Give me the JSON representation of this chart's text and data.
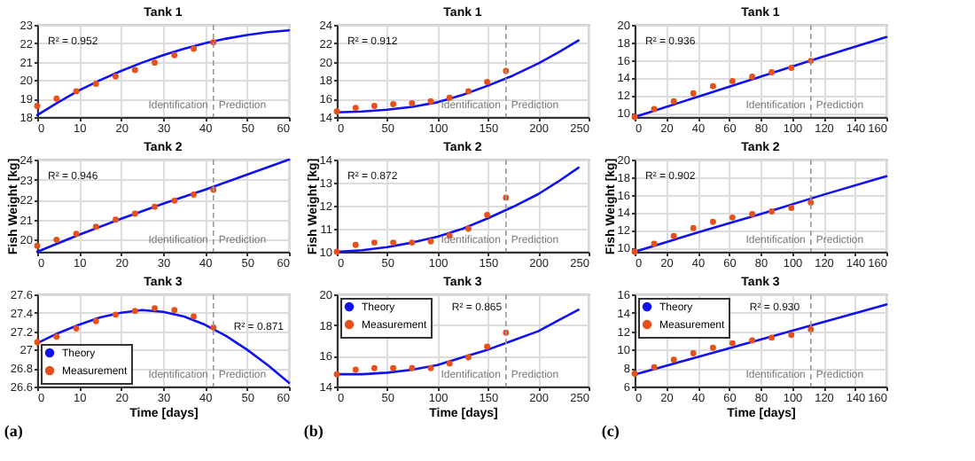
{
  "chart_data": [
    {
      "type": "line",
      "title": "Tank 1",
      "xlim": [
        0,
        60
      ],
      "xticks": [
        0,
        10,
        20,
        30,
        40,
        50,
        60
      ],
      "ylim": [
        18,
        23
      ],
      "yticks": [
        18,
        19,
        20,
        21,
        22,
        23
      ],
      "grid": true,
      "legend": false,
      "series": [
        {
          "color": "#1010f0",
          "line_style": "solid",
          "x": [
            0,
            5,
            10,
            15,
            20,
            25,
            30,
            35,
            40,
            45,
            50,
            55,
            60
          ],
          "values": [
            18.1,
            18.8,
            19.45,
            20.0,
            20.5,
            20.95,
            21.35,
            21.7,
            22.0,
            22.25,
            22.45,
            22.6,
            22.7
          ]
        },
        {
          "type": "scatter",
          "color": "#e8501a",
          "marker": "circle",
          "x": [
            0,
            4.6,
            9.3,
            14,
            18.7,
            23.3,
            28,
            32.7,
            37.3,
            42
          ],
          "values": [
            18.6,
            19.0,
            19.4,
            19.8,
            20.2,
            20.55,
            20.95,
            21.35,
            21.7,
            22.05
          ]
        }
      ],
      "ref_lines": [
        {
          "axis": "x",
          "value": 42,
          "color": "#999999",
          "line_style": "dashed"
        }
      ],
      "annotations": [
        "R² = 0.952",
        "Identification",
        "Prediction"
      ]
    },
    {
      "type": "line",
      "title": "Tank 2",
      "ylabel": "Fish Weight [kg]",
      "xlim": [
        0,
        60
      ],
      "xticks": [
        0,
        10,
        20,
        30,
        40,
        50,
        60
      ],
      "ylim": [
        19.4,
        24
      ],
      "yticks": [
        20,
        21,
        22,
        23,
        24
      ],
      "grid": true,
      "legend": false,
      "series": [
        {
          "color": "#1010f0",
          "line_style": "solid",
          "x": [
            0,
            10,
            20,
            30,
            40,
            50,
            60
          ],
          "values": [
            19.4,
            20.25,
            21.05,
            21.8,
            22.5,
            23.25,
            24.0
          ]
        },
        {
          "type": "scatter",
          "color": "#e8501a",
          "marker": "circle",
          "x": [
            0,
            4.6,
            9.3,
            14,
            18.7,
            23.3,
            28,
            32.7,
            37.3,
            42
          ],
          "values": [
            19.7,
            20.0,
            20.3,
            20.65,
            21.0,
            21.3,
            21.65,
            21.95,
            22.25,
            22.5
          ]
        }
      ],
      "ref_lines": [
        {
          "axis": "x",
          "value": 42,
          "color": "#999999",
          "line_style": "dashed"
        }
      ],
      "annotations": [
        "R² = 0.946",
        "Identification",
        "Prediction"
      ]
    },
    {
      "type": "line",
      "title": "Tank 3",
      "xlabel": "Time [days]",
      "xlim": [
        0,
        60
      ],
      "xticks": [
        0,
        10,
        20,
        30,
        40,
        50,
        60
      ],
      "ylim": [
        26.6,
        27.6
      ],
      "yticks": [
        26.6,
        26.8,
        27,
        27.2,
        27.4,
        27.6
      ],
      "grid": true,
      "legend": "bottom left",
      "series": [
        {
          "name": "Theory",
          "color": "#1010f0",
          "line_style": "solid",
          "x": [
            0,
            5,
            10,
            15,
            20,
            25,
            30,
            35,
            40,
            45,
            50,
            55,
            60
          ],
          "values": [
            27.07,
            27.18,
            27.27,
            27.35,
            27.4,
            27.43,
            27.41,
            27.36,
            27.27,
            27.15,
            27.0,
            26.83,
            26.64
          ]
        },
        {
          "name": "Measurement",
          "type": "scatter",
          "color": "#e8501a",
          "marker": "circle",
          "x": [
            0,
            4.6,
            9.3,
            14,
            18.7,
            23.3,
            28,
            32.7,
            37.3,
            42
          ],
          "values": [
            27.08,
            27.14,
            27.23,
            27.31,
            27.38,
            27.42,
            27.45,
            27.43,
            27.36,
            27.24
          ]
        }
      ],
      "ref_lines": [
        {
          "axis": "x",
          "value": 42,
          "color": "#999999",
          "line_style": "dashed"
        }
      ],
      "annotations": [
        "R² = 0.871",
        "Identification",
        "Prediction",
        "(a)"
      ]
    },
    {
      "type": "line",
      "title": "Tank 1",
      "xlim": [
        0,
        250
      ],
      "xticks": [
        0,
        50,
        100,
        150,
        200,
        250
      ],
      "ylim": [
        14,
        24
      ],
      "yticks": [
        14,
        16,
        18,
        20,
        22,
        24
      ],
      "grid": true,
      "legend": false,
      "series": [
        {
          "color": "#1010f0",
          "line_style": "solid",
          "x": [
            0,
            25,
            50,
            75,
            100,
            125,
            150,
            175,
            200,
            220,
            240
          ],
          "values": [
            14.5,
            14.6,
            14.8,
            15.1,
            15.6,
            16.4,
            17.4,
            18.5,
            19.8,
            21.0,
            22.3
          ]
        },
        {
          "type": "scatter",
          "color": "#e8501a",
          "marker": "circle",
          "x": [
            0,
            18.7,
            37.3,
            56,
            74.7,
            93.3,
            112,
            130.7,
            149.3,
            168
          ],
          "values": [
            14.6,
            15.0,
            15.2,
            15.4,
            15.5,
            15.7,
            16.1,
            16.8,
            17.8,
            19.0
          ]
        }
      ],
      "ref_lines": [
        {
          "axis": "x",
          "value": 168,
          "color": "#999999",
          "line_style": "dashed"
        }
      ],
      "annotations": [
        "R² = 0.912",
        "Identification",
        "Prediction"
      ]
    },
    {
      "type": "line",
      "title": "Tank 2",
      "ylabel": "Fish Weight [kg]",
      "xlim": [
        0,
        250
      ],
      "xticks": [
        0,
        50,
        100,
        150,
        200,
        250
      ],
      "ylim": [
        10,
        14
      ],
      "yticks": [
        10,
        11,
        12,
        13,
        14
      ],
      "grid": true,
      "legend": false,
      "series": [
        {
          "color": "#1010f0",
          "line_style": "solid",
          "x": [
            0,
            25,
            50,
            75,
            100,
            125,
            150,
            175,
            200,
            220,
            240
          ],
          "values": [
            10.0,
            10.07,
            10.2,
            10.4,
            10.65,
            11.0,
            11.45,
            11.95,
            12.5,
            13.05,
            13.65
          ]
        },
        {
          "type": "scatter",
          "color": "#e8501a",
          "marker": "circle",
          "x": [
            0,
            18.7,
            37.3,
            56,
            74.7,
            93.3,
            112,
            130.7,
            149.3,
            168
          ],
          "values": [
            10.0,
            10.3,
            10.4,
            10.4,
            10.4,
            10.45,
            10.7,
            11.0,
            11.6,
            12.35
          ]
        }
      ],
      "ref_lines": [
        {
          "axis": "x",
          "value": 168,
          "color": "#999999",
          "line_style": "dashed"
        }
      ],
      "annotations": [
        "R² = 0.872",
        "Identification",
        "Prediction"
      ]
    },
    {
      "type": "line",
      "title": "Tank 3",
      "xlabel": "Time [days]",
      "xlim": [
        0,
        250
      ],
      "xticks": [
        0,
        50,
        100,
        150,
        200,
        250
      ],
      "ylim": [
        14,
        20
      ],
      "yticks": [
        14,
        16,
        18,
        20
      ],
      "grid": true,
      "legend": "top left",
      "series": [
        {
          "name": "Theory",
          "color": "#1010f0",
          "line_style": "solid",
          "x": [
            0,
            25,
            50,
            75,
            100,
            125,
            150,
            175,
            200,
            220,
            240
          ],
          "values": [
            14.8,
            14.8,
            14.9,
            15.1,
            15.4,
            15.9,
            16.4,
            17.0,
            17.6,
            18.3,
            19.0
          ]
        },
        {
          "name": "Measurement",
          "type": "scatter",
          "color": "#e8501a",
          "marker": "circle",
          "x": [
            0,
            18.7,
            37.3,
            56,
            74.7,
            93.3,
            112,
            130.7,
            149.3,
            168
          ],
          "values": [
            14.8,
            15.1,
            15.2,
            15.2,
            15.2,
            15.2,
            15.5,
            15.9,
            16.6,
            17.5
          ]
        }
      ],
      "ref_lines": [
        {
          "axis": "x",
          "value": 168,
          "color": "#999999",
          "line_style": "dashed"
        }
      ],
      "annotations": [
        "R² = 0.865",
        "Identification",
        "Prediction",
        "(b)"
      ]
    },
    {
      "type": "line",
      "title": "Tank 1",
      "xlim": [
        0,
        160
      ],
      "xticks": [
        0,
        20,
        40,
        60,
        80,
        100,
        120,
        140,
        160
      ],
      "ylim": [
        9.5,
        20
      ],
      "yticks": [
        10,
        12,
        14,
        16,
        18,
        20
      ],
      "grid": true,
      "legend": false,
      "series": [
        {
          "color": "#1010f0",
          "line_style": "solid",
          "x": [
            0,
            40,
            80,
            120,
            160
          ],
          "values": [
            9.5,
            11.8,
            14.1,
            16.4,
            18.6
          ]
        },
        {
          "type": "scatter",
          "color": "#e8501a",
          "marker": "circle",
          "x": [
            0,
            12.4,
            24.9,
            37.3,
            49.8,
            62.2,
            74.7,
            87.1,
            99.6,
            112
          ],
          "values": [
            9.5,
            10.4,
            11.3,
            12.2,
            13.0,
            13.6,
            14.1,
            14.6,
            15.1,
            15.9
          ]
        }
      ],
      "ref_lines": [
        {
          "axis": "x",
          "value": 112,
          "color": "#999999",
          "line_style": "dashed"
        }
      ],
      "annotations": [
        "R² = 0.936",
        "Identification",
        "Prediction"
      ]
    },
    {
      "type": "line",
      "title": "Tank 2",
      "ylabel": "Fish Weight [kg]",
      "xlim": [
        0,
        160
      ],
      "xticks": [
        0,
        20,
        40,
        60,
        80,
        100,
        120,
        140,
        160
      ],
      "ylim": [
        9.5,
        20
      ],
      "yticks": [
        10,
        12,
        14,
        16,
        18,
        20
      ],
      "grid": true,
      "legend": false,
      "series": [
        {
          "color": "#1010f0",
          "line_style": "solid",
          "x": [
            0,
            40,
            80,
            120,
            160
          ],
          "values": [
            9.5,
            11.7,
            13.8,
            16.0,
            18.1
          ]
        },
        {
          "type": "scatter",
          "color": "#e8501a",
          "marker": "circle",
          "x": [
            0,
            12.4,
            24.9,
            37.3,
            49.8,
            62.2,
            74.7,
            87.1,
            99.6,
            112
          ],
          "values": [
            9.5,
            10.4,
            11.3,
            12.2,
            12.9,
            13.4,
            13.8,
            14.1,
            14.5,
            15.1
          ]
        }
      ],
      "ref_lines": [
        {
          "axis": "x",
          "value": 112,
          "color": "#999999",
          "line_style": "dashed"
        }
      ],
      "annotations": [
        "R² = 0.902",
        "Identification",
        "Prediction"
      ]
    },
    {
      "type": "line",
      "title": "Tank 3",
      "xlabel": "Time [days]",
      "xlim": [
        0,
        160
      ],
      "xticks": [
        0,
        20,
        40,
        60,
        80,
        100,
        120,
        140,
        160
      ],
      "ylim": [
        6,
        16
      ],
      "yticks": [
        6,
        8,
        10,
        12,
        14,
        16
      ],
      "grid": true,
      "legend": "top left",
      "series": [
        {
          "name": "Theory",
          "color": "#1010f0",
          "line_style": "solid",
          "x": [
            0,
            40,
            80,
            120,
            160
          ],
          "values": [
            7.3,
            9.2,
            11.1,
            13.0,
            14.9
          ]
        },
        {
          "name": "Measurement",
          "type": "scatter",
          "color": "#e8501a",
          "marker": "circle",
          "x": [
            0,
            12.4,
            24.9,
            37.3,
            49.8,
            62.2,
            74.7,
            87.1,
            99.6,
            112
          ],
          "values": [
            7.4,
            8.1,
            8.9,
            9.6,
            10.2,
            10.7,
            11.0,
            11.3,
            11.6,
            12.2
          ]
        }
      ],
      "ref_lines": [
        {
          "axis": "x",
          "value": 112,
          "color": "#999999",
          "line_style": "dashed"
        }
      ],
      "annotations": [
        "R² = 0.930",
        "Identification",
        "Prediction",
        "(c)"
      ]
    }
  ]
}
